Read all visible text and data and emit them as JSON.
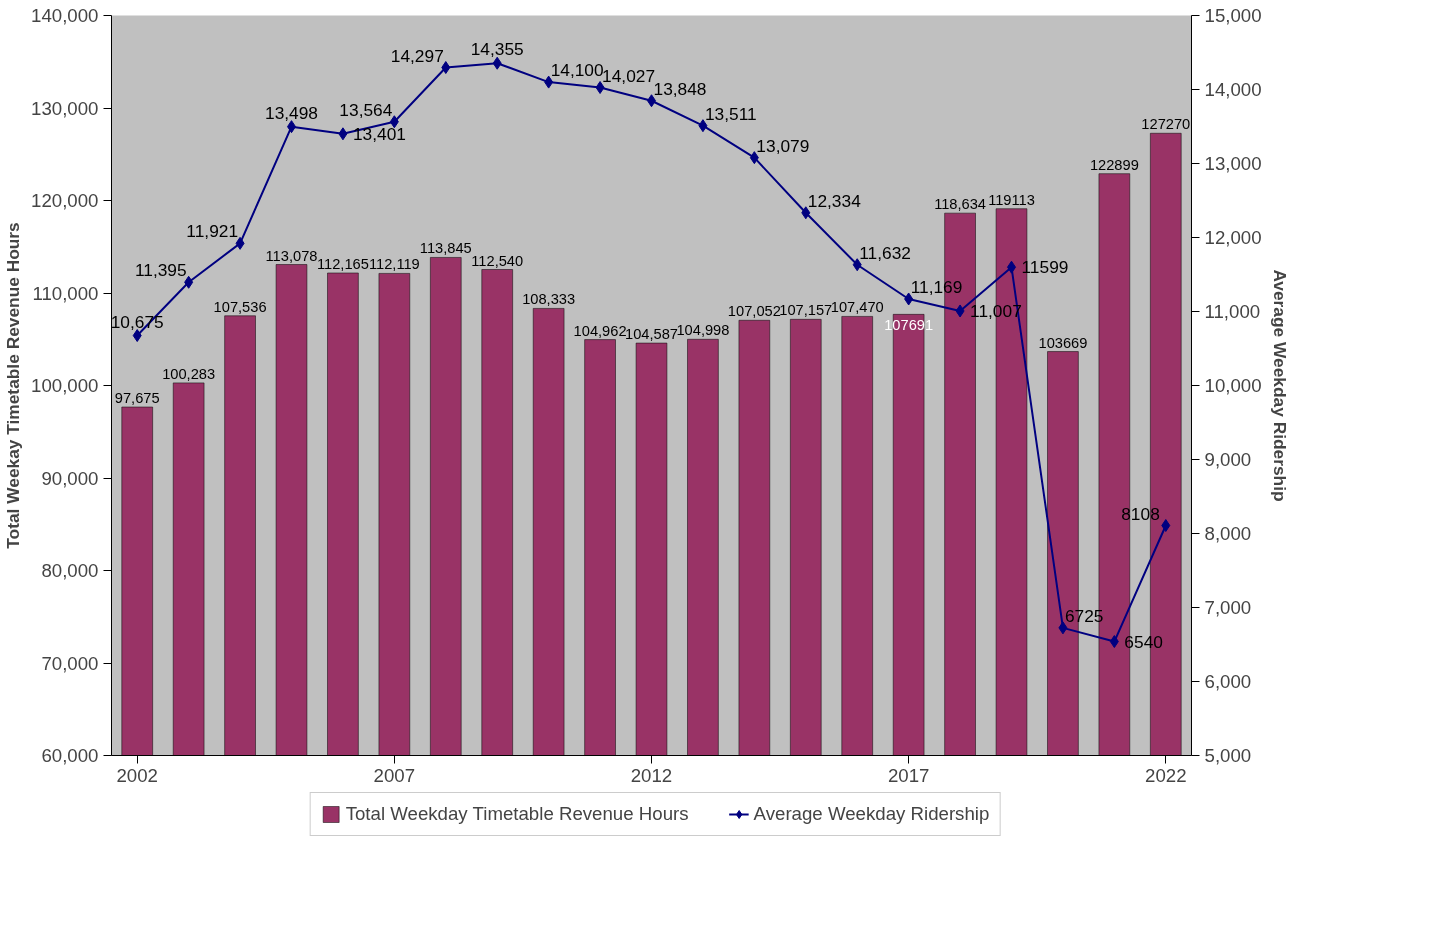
{
  "chart_data": {
    "type": "bar",
    "x": [
      2002,
      2003,
      2004,
      2005,
      2006,
      2007,
      2008,
      2009,
      2010,
      2011,
      2012,
      2013,
      2014,
      2015,
      2016,
      2017,
      2018,
      2019,
      2020,
      2021,
      2022
    ],
    "xlim": [
      2001.5,
      2022.5
    ],
    "xticks": [
      2002,
      2007,
      2012,
      2017,
      2022
    ],
    "ylabel": "Total Weekay Timetable Revenue Hours",
    "y2label": "Average Weekday Ridership",
    "ylim": [
      60000,
      140000
    ],
    "yticks": [
      {
        "value": 60000,
        "label": "60,000"
      },
      {
        "value": 70000,
        "label": "70,000"
      },
      {
        "value": 80000,
        "label": "80,000"
      },
      {
        "value": 90000,
        "label": "90,000"
      },
      {
        "value": 100000,
        "label": "100,000"
      },
      {
        "value": 110000,
        "label": "110,000"
      },
      {
        "value": 120000,
        "label": "120,000"
      },
      {
        "value": 130000,
        "label": "130,000"
      },
      {
        "value": 140000,
        "label": "140,000"
      }
    ],
    "y2lim": [
      5000,
      15000
    ],
    "y2ticks": [
      {
        "value": 5000,
        "label": "5,000"
      },
      {
        "value": 6000,
        "label": "6,000"
      },
      {
        "value": 7000,
        "label": "7,000"
      },
      {
        "value": 8000,
        "label": "8,000"
      },
      {
        "value": 9000,
        "label": "9,000"
      },
      {
        "value": 10000,
        "label": "10,000"
      },
      {
        "value": 11000,
        "label": "11,000"
      },
      {
        "value": 12000,
        "label": "12,000"
      },
      {
        "value": 13000,
        "label": "13,000"
      },
      {
        "value": 14000,
        "label": "14,000"
      },
      {
        "value": 15000,
        "label": "15,000"
      }
    ],
    "grid": false,
    "legend": "bottom",
    "series": [
      {
        "name": "Total Weekday Timetable Revenue Hours",
        "color": "#993366",
        "values": [
          97675,
          100283,
          107536,
          113078,
          112165,
          112119,
          113845,
          112540,
          108333,
          104962,
          104587,
          104998,
          107052,
          107157,
          107470,
          107691,
          118634,
          119113,
          103669,
          122899,
          127270
        ],
        "value_labels": [
          "97,675",
          "100,283",
          "107,536",
          "113,078",
          "112,165",
          "112,119",
          "113,845",
          "112,540",
          "108,333",
          "104,962",
          "104,587",
          "104,998",
          "107,052",
          "107,157",
          "107,470",
          "107691",
          "118,634",
          "119113",
          "103669",
          "122899",
          "127270"
        ]
      },
      {
        "name": "Average Weekday Ridership",
        "type": "line",
        "axis": "y2",
        "color": "#000080",
        "marker": "diamond",
        "line_style": "solid",
        "values": [
          10675,
          11395,
          11921,
          13498,
          13401,
          13564,
          14297,
          14355,
          14100,
          14027,
          13848,
          13511,
          13079,
          12334,
          11632,
          11169,
          11007,
          11599,
          6725,
          6540,
          8108
        ],
        "value_labels": [
          "10,675",
          "11,395",
          "11,921",
          "13,498",
          "13,401",
          "13,564",
          "14,297",
          "14,355",
          "14,100",
          "14,027",
          "13,848",
          "13,511",
          "13,079",
          "12,334",
          "11,632",
          "11,169",
          "11,007",
          "11599",
          "6725",
          "6540",
          "8108"
        ]
      }
    ]
  }
}
